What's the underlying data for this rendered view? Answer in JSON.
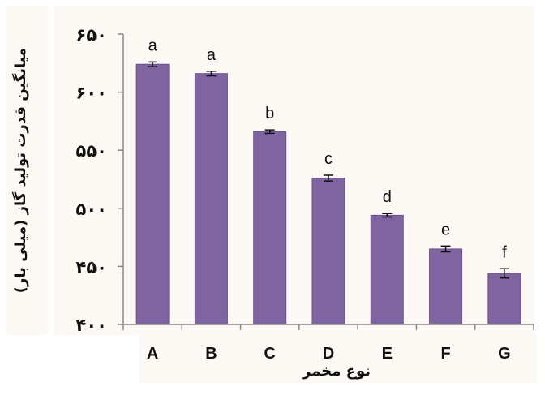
{
  "chart_data": {
    "type": "bar",
    "categories": [
      "A",
      "B",
      "C",
      "D",
      "E",
      "F",
      "G"
    ],
    "values": [
      624,
      616,
      566,
      526,
      494,
      465,
      444
    ],
    "errors": [
      2.0,
      2.0,
      1.5,
      2.5,
      1.5,
      2.5,
      4.0
    ],
    "annotations": [
      "a",
      "a",
      "b",
      "c",
      "d",
      "e",
      "f"
    ],
    "ylim": [
      400,
      650
    ],
    "yticks": [
      400,
      450,
      500,
      550,
      600,
      650
    ],
    "ytick_labels": [
      "۴۰۰",
      "۴۵۰",
      "۵۰۰",
      "۵۵۰",
      "۶۰۰",
      "۶۵۰"
    ],
    "xlabel": "نوع مخمر",
    "ylabel": "میانگین قدرت تولید گاز (میلی بار)",
    "title": "",
    "grid": false,
    "legend": "none",
    "bar_color": "#8064a2",
    "bar_edge_color": "#6a5290",
    "error_color": "#111111"
  }
}
